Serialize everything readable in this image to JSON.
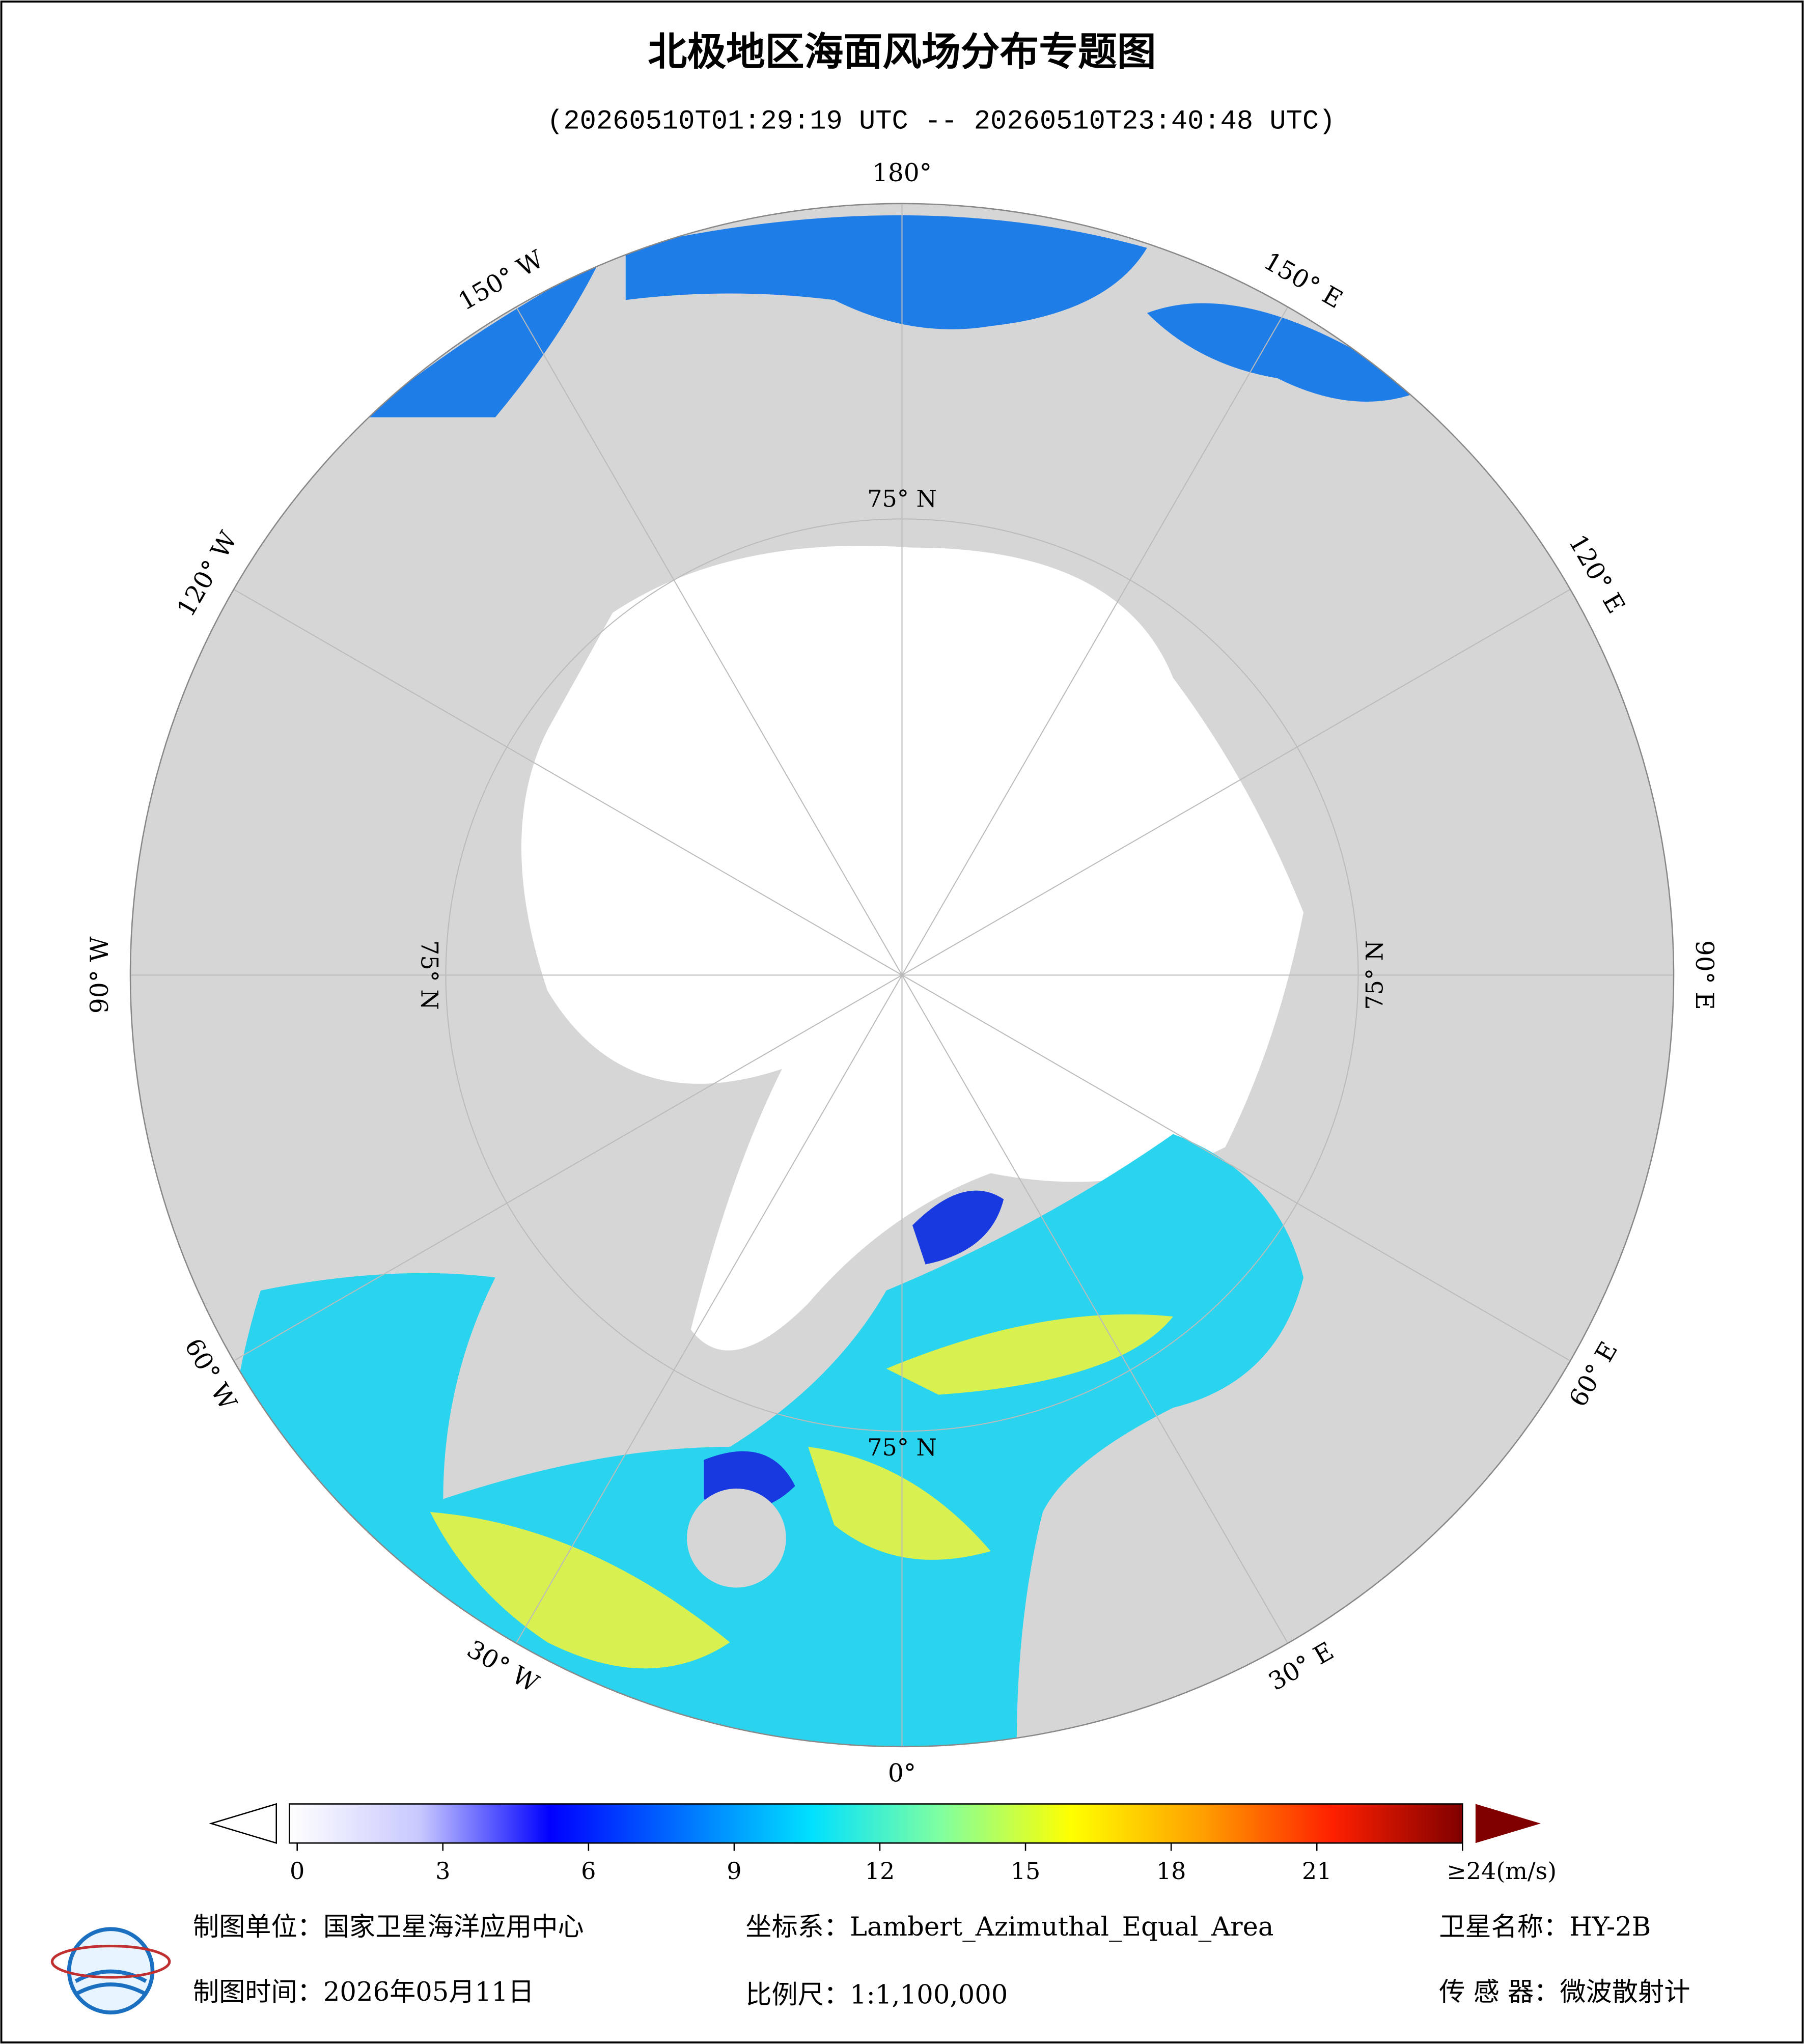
{
  "header": {
    "title": "北极地区海面风场分布专题图",
    "subtitle": "(20260510T01:29:19 UTC -- 20260510T23:40:48 UTC)"
  },
  "map": {
    "longitude_labels": [
      {
        "value": 180,
        "label": "180°"
      },
      {
        "value": 150,
        "label": "150° E"
      },
      {
        "value": 120,
        "label": "120° E"
      },
      {
        "value": 90,
        "label": "90° E"
      },
      {
        "value": 60,
        "label": "60° E"
      },
      {
        "value": 30,
        "label": "30° E"
      },
      {
        "value": 0,
        "label": "0°"
      },
      {
        "value": -30,
        "label": "30° W"
      },
      {
        "value": -60,
        "label": "60° W"
      },
      {
        "value": -90,
        "label": "90° W"
      },
      {
        "value": -120,
        "label": "120° W"
      },
      {
        "value": -150,
        "label": "150° W"
      }
    ],
    "latitude_label": {
      "value": 75,
      "label": "75° N"
    }
  },
  "colorbar": {
    "range": [
      0,
      24
    ],
    "colors": [
      "#ffffff",
      "#c8c8ff",
      "#0000ff",
      "#0070ff",
      "#00e0ff",
      "#80ffa0",
      "#ffff00",
      "#ffa000",
      "#ff2000",
      "#800000"
    ],
    "ticks": [
      0,
      3,
      6,
      9,
      12,
      15,
      18,
      21,
      {
        "value": 24,
        "label": "≥24(m/s)"
      }
    ]
  },
  "footer": {
    "unit": "制图单位：国家卫星海洋应用中心",
    "crs": "坐标系：Lambert_Azimuthal_Equal_Area",
    "satellite": "卫星名称：HY-2B",
    "date": "制图时间：2026年05月11日",
    "scale": "比例尺：1:1,100,000",
    "sensor": "传 感 器：微波散射计"
  }
}
